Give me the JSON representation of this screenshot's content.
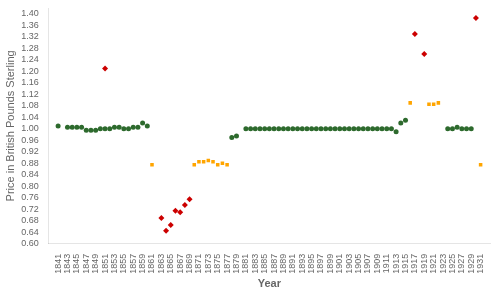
{
  "chart_data": {
    "type": "scatter",
    "xlabel": "Year",
    "ylabel": "Price in British Pounds Sterling",
    "grid": false,
    "xlim": [
      1839,
      1933
    ],
    "xticks": [
      1841,
      1843,
      1845,
      1847,
      1849,
      1851,
      1853,
      1855,
      1857,
      1859,
      1861,
      1863,
      1865,
      1867,
      1869,
      1871,
      1873,
      1875,
      1877,
      1879,
      1881,
      1883,
      1885,
      1887,
      1889,
      1891,
      1893,
      1895,
      1897,
      1899,
      1901,
      1903,
      1905,
      1907,
      1909,
      1911,
      1913,
      1915,
      1917,
      1919,
      1921,
      1923,
      1925,
      1927,
      1929,
      1931
    ],
    "ylim": [
      0.6,
      1.42
    ],
    "yticks": [
      {
        "value": 0.6,
        "label": "0.60"
      },
      0.64,
      0.68,
      0.72,
      0.76,
      {
        "value": 0.8,
        "label": "0.80"
      },
      0.84,
      0.88,
      0.92,
      0.96,
      {
        "value": 1.0,
        "label": "1.00"
      },
      1.04,
      1.08,
      1.12,
      1.16,
      {
        "value": 1.2,
        "label": "1.20"
      },
      1.24,
      1.28,
      1.32,
      1.36,
      {
        "value": 1.4,
        "label": "1.40"
      }
    ],
    "series": [
      {
        "color": "#2d6a2d",
        "marker": "circle",
        "x": [
          1841,
          1843,
          1844,
          1845,
          1846,
          1847,
          1848,
          1849,
          1850,
          1851,
          1852,
          1853,
          1854,
          1855,
          1856,
          1857,
          1858,
          1859,
          1860,
          1878,
          1879,
          1881,
          1882,
          1883,
          1884,
          1885,
          1886,
          1887,
          1888,
          1889,
          1890,
          1891,
          1892,
          1893,
          1894,
          1895,
          1896,
          1897,
          1898,
          1899,
          1900,
          1901,
          1902,
          1903,
          1904,
          1905,
          1906,
          1907,
          1908,
          1909,
          1910,
          1911,
          1912,
          1913,
          1914,
          1915,
          1924,
          1925,
          1926,
          1927,
          1928,
          1929
        ],
        "values": [
          1.01,
          1.005,
          1.005,
          1.005,
          1.005,
          0.995,
          0.995,
          0.995,
          1.0,
          1.0,
          1.0,
          1.005,
          1.005,
          1.0,
          1.0,
          1.005,
          1.005,
          1.02,
          1.01,
          0.97,
          0.975,
          1.0,
          1.0,
          1.0,
          1.0,
          1.0,
          1.0,
          1.0,
          1.0,
          1.0,
          1.0,
          1.0,
          1.0,
          1.0,
          1.0,
          1.0,
          1.0,
          1.0,
          1.0,
          1.0,
          1.0,
          1.0,
          1.0,
          1.0,
          1.0,
          1.0,
          1.0,
          1.0,
          1.0,
          1.0,
          1.0,
          1.0,
          1.0,
          0.99,
          1.02,
          1.03,
          1.0,
          1.0,
          1.005,
          1.0,
          1.0,
          1.0
        ]
      },
      {
        "color": "#FFA500",
        "marker": "square",
        "x": [
          1861,
          1870,
          1871,
          1872,
          1873,
          1874,
          1875,
          1876,
          1877,
          1916,
          1920,
          1921,
          1922,
          1931
        ],
        "values": [
          0.875,
          0.875,
          0.885,
          0.885,
          0.89,
          0.885,
          0.875,
          0.88,
          0.875,
          1.09,
          1.085,
          1.085,
          1.09,
          0.875
        ]
      },
      {
        "color": "#CC0000",
        "marker": "diamond",
        "x": [
          1851,
          1863,
          1864,
          1865,
          1866,
          1867,
          1868,
          1869,
          1917,
          1919,
          1930
        ],
        "values": [
          1.21,
          0.69,
          0.645,
          0.665,
          0.715,
          0.71,
          0.735,
          0.755,
          1.33,
          1.26,
          1.385
        ]
      }
    ]
  }
}
